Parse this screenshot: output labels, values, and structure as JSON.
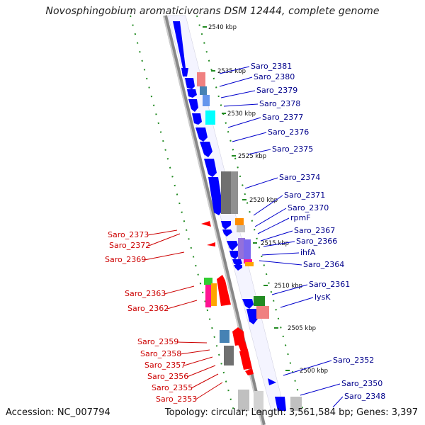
{
  "title": "Novosphingobium aromaticivorans DSM 12444, complete genome",
  "footer": {
    "accession": "Accession: NC_007794",
    "info": "Topology: circular; Length: 3,561,584 bp; Genes: 3,397"
  },
  "colors": {
    "forward": "#0000ff",
    "reverse": "#ff0000",
    "backbone": "#999999",
    "dots": "#228b22",
    "label_forward": "#00008b",
    "label_reverse": "#cc0000"
  },
  "kbp_marks": [
    "2540 kbp",
    "2535 kbp",
    "2530 kbp",
    "2525 kbp",
    "2520 kbp",
    "2515 kbp",
    "2510 kbp",
    "2505 kbp",
    "2500 kbp"
  ],
  "right_labels": [
    "Saro_2381",
    "Saro_2380",
    "Saro_2379",
    "Saro_2378",
    "Saro_2377",
    "Saro_2376",
    "Saro_2375",
    "Saro_2374",
    "Saro_2371",
    "Saro_2370",
    "rpmF",
    "Saro_2367",
    "Saro_2366",
    "ihfA",
    "Saro_2364",
    "Saro_2361",
    "lysK",
    "Saro_2352",
    "Saro_2350",
    "Saro_2348"
  ],
  "left_labels": [
    "Saro_2373",
    "Saro_2372",
    "Saro_2369",
    "Saro_2363",
    "Saro_2362",
    "Saro_2359",
    "Saro_2358",
    "Saro_2357",
    "Saro_2356",
    "Saro_2355",
    "Saro_2353"
  ]
}
